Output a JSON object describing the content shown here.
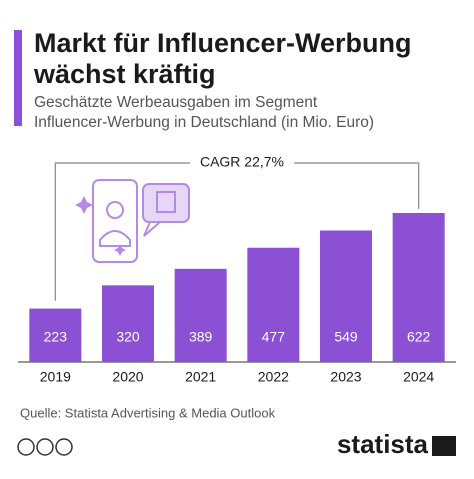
{
  "chart_data": {
    "type": "bar",
    "title": [
      "Markt für Influencer-Werbung",
      "wächst kräftig"
    ],
    "subtitle": [
      "Geschätzte Werbeausgaben im Segment",
      "Influencer-Werbung in Deutschland (in Mio. Euro)"
    ],
    "annotation": "CAGR 22,7%",
    "categories": [
      "2019",
      "2020",
      "2021",
      "2022",
      "2023",
      "2024"
    ],
    "values": [
      223,
      320,
      389,
      477,
      549,
      622
    ],
    "color": "#8b50d4",
    "source": "Quelle: Statista Advertising & Media Outlook",
    "logo": "statista"
  }
}
